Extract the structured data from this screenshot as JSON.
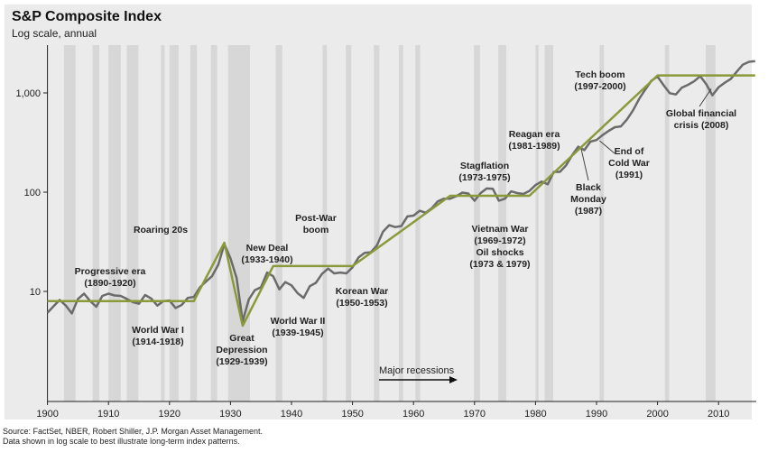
{
  "chart_data": {
    "type": "line",
    "title": "S&P Composite Index",
    "subtitle": "Log scale, annual",
    "xlabel": "",
    "ylabel": "",
    "xlim": [
      1900,
      2016
    ],
    "ylim": [
      1.3,
      2600
    ],
    "yscale": "log",
    "x_ticks": [
      "1900",
      "1910",
      "1920",
      "1930",
      "1940",
      "1950",
      "1960",
      "1970",
      "1980",
      "1990",
      "2000",
      "2010"
    ],
    "y_ticks": [
      {
        "value": 10,
        "label": "10"
      },
      {
        "value": 100,
        "label": "100"
      },
      {
        "value": 1000,
        "label": "1,000"
      }
    ],
    "grid": false,
    "series": [
      {
        "name": "S&P Composite Index",
        "color": "#6b6b6b",
        "x": [
          1900,
          1901,
          1902,
          1903,
          1904,
          1905,
          1906,
          1907,
          1908,
          1909,
          1910,
          1911,
          1912,
          1913,
          1914,
          1915,
          1916,
          1917,
          1918,
          1919,
          1920,
          1921,
          1922,
          1923,
          1924,
          1925,
          1926,
          1927,
          1928,
          1929,
          1930,
          1931,
          1932,
          1933,
          1934,
          1935,
          1936,
          1937,
          1938,
          1939,
          1940,
          1941,
          1942,
          1943,
          1944,
          1945,
          1946,
          1947,
          1948,
          1949,
          1950,
          1951,
          1952,
          1953,
          1954,
          1955,
          1956,
          1957,
          1958,
          1959,
          1960,
          1961,
          1962,
          1963,
          1964,
          1965,
          1966,
          1967,
          1968,
          1969,
          1970,
          1971,
          1972,
          1973,
          1974,
          1975,
          1976,
          1977,
          1978,
          1979,
          1980,
          1981,
          1982,
          1983,
          1984,
          1985,
          1986,
          1987,
          1988,
          1989,
          1990,
          1991,
          1992,
          1993,
          1994,
          1995,
          1996,
          1997,
          1998,
          1999,
          2000,
          2001,
          2002,
          2003,
          2004,
          2005,
          2006,
          2007,
          2008,
          2009,
          2010,
          2011,
          2012,
          2013,
          2014,
          2015,
          2016
        ],
        "values": [
          6.1,
          7.1,
          8.2,
          7.2,
          6.0,
          8.4,
          9.5,
          8.0,
          7.0,
          9.0,
          9.5,
          9.1,
          9.0,
          8.4,
          7.8,
          7.5,
          9.2,
          8.5,
          7.2,
          8.0,
          8.1,
          6.8,
          7.3,
          8.6,
          8.8,
          11,
          12.6,
          14.3,
          18.6,
          30,
          21.5,
          13.6,
          5,
          8.3,
          10.3,
          11,
          15.5,
          14.2,
          10.5,
          12.4,
          11.5,
          9.6,
          8.6,
          11.3,
          12.2,
          15,
          17,
          15.2,
          15.5,
          15.2,
          17.5,
          22,
          24.5,
          24.8,
          29,
          40,
          46.5,
          44.5,
          45.5,
          57,
          58,
          65,
          62,
          69,
          81,
          86,
          86,
          91,
          99,
          97,
          82,
          98,
          109,
          108,
          82,
          86,
          102,
          98,
          96,
          103,
          118,
          128,
          120,
          160,
          160,
          186,
          236,
          287,
          265,
          323,
          335,
          376,
          415,
          451,
          460,
          542,
          671,
          873,
          1085,
          1327,
          1460,
          1194,
          993,
          965,
          1131,
          1207,
          1311,
          1477,
          1220,
          948,
          1139,
          1268,
          1380,
          1643,
          1931,
          2061,
          2095
        ]
      },
      {
        "name": "Trend",
        "color": "#8a9a3a",
        "x": [
          1900,
          1924,
          1929,
          1932,
          1937,
          1950,
          1966,
          1979,
          2000,
          2016
        ],
        "values": [
          8,
          8,
          31,
          4.5,
          18,
          18,
          92,
          92,
          1500,
          1500
        ]
      }
    ],
    "recessions": {
      "label": "Major recessions",
      "color": "#d7d7d7",
      "periods": [
        [
          1902.7,
          1904.6
        ],
        [
          1907.4,
          1908.5
        ],
        [
          1910,
          1912
        ],
        [
          1913,
          1914.9
        ],
        [
          1918.6,
          1919.2
        ],
        [
          1920,
          1921.5
        ],
        [
          1923.4,
          1924.5
        ],
        [
          1926.8,
          1927.8
        ],
        [
          1929.6,
          1933.2
        ],
        [
          1937.4,
          1938.5
        ],
        [
          1945.1,
          1945.8
        ],
        [
          1948.9,
          1949.8
        ],
        [
          1953.5,
          1954.4
        ],
        [
          1957.6,
          1958.3
        ],
        [
          1960.3,
          1961.1
        ],
        [
          1969.9,
          1970.9
        ],
        [
          1973.9,
          1975.2
        ],
        [
          1980,
          1980.5
        ],
        [
          1981.5,
          1982.9
        ],
        [
          1990.5,
          1991.2
        ],
        [
          2001.2,
          2001.9
        ],
        [
          2007.9,
          2009.5
        ]
      ]
    },
    "annotations": [
      {
        "lines": [
          "Progressive era",
          "(1890-1920)"
        ]
      },
      {
        "lines": [
          "World War I",
          "(1914-1918)"
        ]
      },
      {
        "lines": [
          "Roaring 20s"
        ]
      },
      {
        "lines": [
          "New Deal",
          "(1933-1940)"
        ]
      },
      {
        "lines": [
          "Great",
          "Depression",
          "(1929-1939)"
        ]
      },
      {
        "lines": [
          "World War II",
          "(1939-1945)"
        ]
      },
      {
        "lines": [
          "Post-War",
          "boom"
        ]
      },
      {
        "lines": [
          "Korean War",
          "(1950-1953)"
        ]
      },
      {
        "lines": [
          "Stagflation",
          "(1973-1975)"
        ]
      },
      {
        "lines": [
          "Vietnam War",
          "(1969-1972)",
          "Oil shocks",
          "(1973 & 1979)"
        ]
      },
      {
        "lines": [
          "Reagan era",
          "(1981-1989)"
        ]
      },
      {
        "lines": [
          "Black",
          "Monday",
          "(1987)"
        ]
      },
      {
        "lines": [
          "End of",
          "Cold War",
          "(1991)"
        ]
      },
      {
        "lines": [
          "Tech boom",
          "(1997-2000)"
        ]
      },
      {
        "lines": [
          "Global financial",
          "crisis (2008)"
        ]
      }
    ]
  },
  "source": [
    "Source: FactSet, NBER, Robert Shiller, J.P. Morgan Asset Management.",
    "Data shown in log scale to best illustrate long-term index patterns."
  ]
}
